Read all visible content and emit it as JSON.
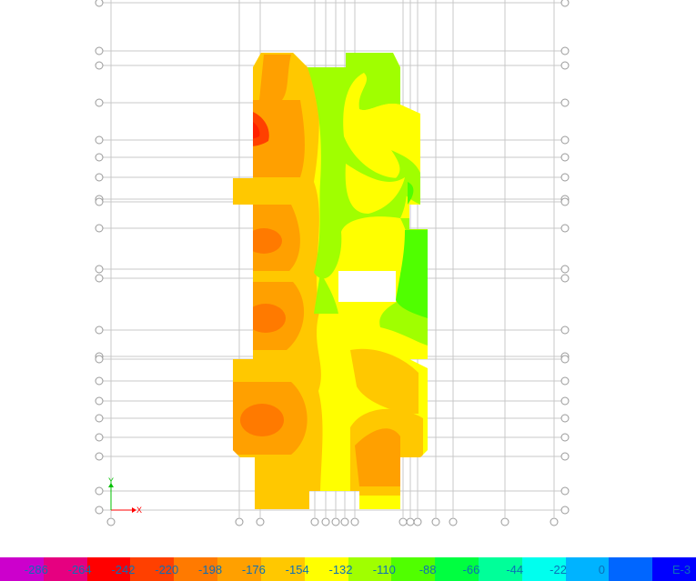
{
  "legend": {
    "colors": [
      "#cc00cc",
      "#e60080",
      "#ff0000",
      "#ff4000",
      "#ff7a00",
      "#ffa000",
      "#ffc800",
      "#ffff00",
      "#a0ff00",
      "#50ff00",
      "#00ff40",
      "#00ff99",
      "#00ffee",
      "#00b3ff",
      "#0066ff",
      "#0000ff"
    ],
    "labels": [
      "-286",
      "-264",
      "-242",
      "-220",
      "-198",
      "-176",
      "-154",
      "-132",
      "-110",
      "-88",
      "-66",
      "-44",
      "-22",
      "0"
    ],
    "unit": "E-3"
  },
  "axes": {
    "x_label": "X",
    "y_label": "Y"
  },
  "colors": {
    "grid": "#c8c8c8",
    "bubble": "#9a9a9a",
    "axis_x": "#ff0000",
    "axis_y": "#00c000"
  }
}
